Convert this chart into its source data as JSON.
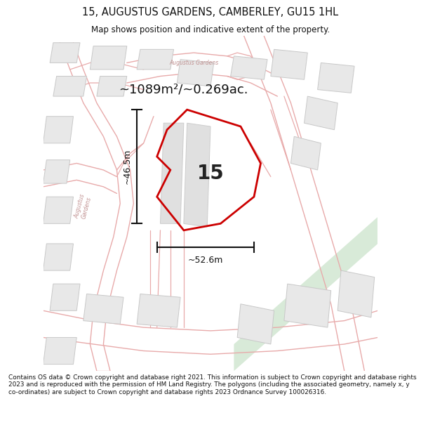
{
  "title": "15, AUGUSTUS GARDENS, CAMBERLEY, GU15 1HL",
  "subtitle": "Map shows position and indicative extent of the property.",
  "area_text": "~1089m²/~0.269ac.",
  "label_number": "15",
  "dim_width": "~52.6m",
  "dim_height": "~46.5m",
  "footer": "Contains OS data © Crown copyright and database right 2021. This information is subject to Crown copyright and database rights 2023 and is reproduced with the permission of HM Land Registry. The polygons (including the associated geometry, namely x, y co-ordinates) are subject to Crown copyright and database rights 2023 Ordnance Survey 100026316.",
  "bg_color": "#ffffff",
  "map_bg": "#ffffff",
  "road_color": "#e8aaaa",
  "building_fill": "#e8e8e8",
  "building_edge": "#c8c8c8",
  "green_fill": "#d8ead8",
  "property_color": "#cc0000",
  "dim_line_color": "#111111",
  "title_color": "#111111",
  "street_label_color": "#c09090",
  "footer_color": "#111111",
  "street_label_aug": "Augustus Gardens",
  "street_label_aug2": "Augustus Gardens"
}
